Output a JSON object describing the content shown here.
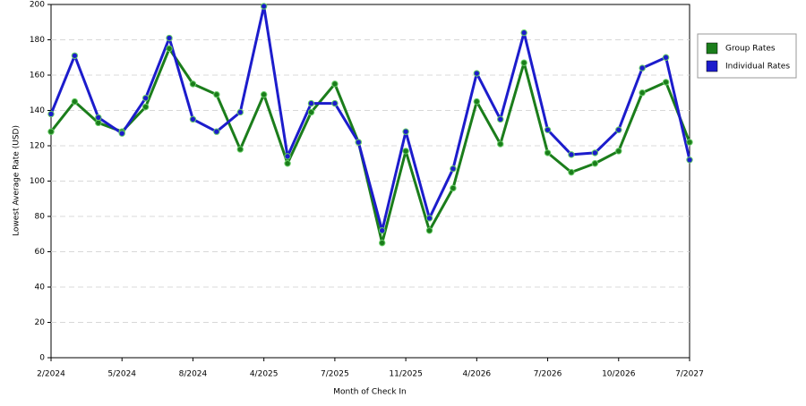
{
  "chart_data": {
    "type": "line",
    "x_label": "Month of Check In",
    "y_label": "Lowest Average Rate (USD)",
    "categories": [
      "2/2024",
      null,
      null,
      "5/2024",
      null,
      null,
      "8/2024",
      null,
      null,
      "4/2025",
      null,
      null,
      "7/2025",
      null,
      null,
      "11/2025",
      null,
      null,
      "4/2026",
      null,
      null,
      "7/2026",
      null,
      null,
      "10/2026",
      null,
      null,
      "7/2027"
    ],
    "series": [
      {
        "name": "Group Rates",
        "color": "#1b7d1b",
        "values": [
          128,
          145,
          133,
          128,
          142,
          175,
          155,
          149,
          118,
          149,
          110,
          139,
          155,
          122,
          65,
          117,
          72,
          96,
          145,
          121,
          167,
          116,
          105,
          110,
          117,
          150,
          156,
          122
        ]
      },
      {
        "name": "Individual Rates",
        "color": "#1c1ccc",
        "values": [
          138,
          171,
          136,
          127,
          147,
          181,
          135,
          128,
          139,
          199,
          114,
          144,
          144,
          122,
          72,
          128,
          79,
          107,
          161,
          135,
          184,
          129,
          115,
          116,
          129,
          164,
          170,
          112
        ]
      }
    ],
    "ylim": [
      0,
      200
    ],
    "yticks": [
      0,
      20,
      40,
      60,
      80,
      100,
      120,
      140,
      160,
      180,
      200
    ],
    "grid": true,
    "legend": "right"
  }
}
